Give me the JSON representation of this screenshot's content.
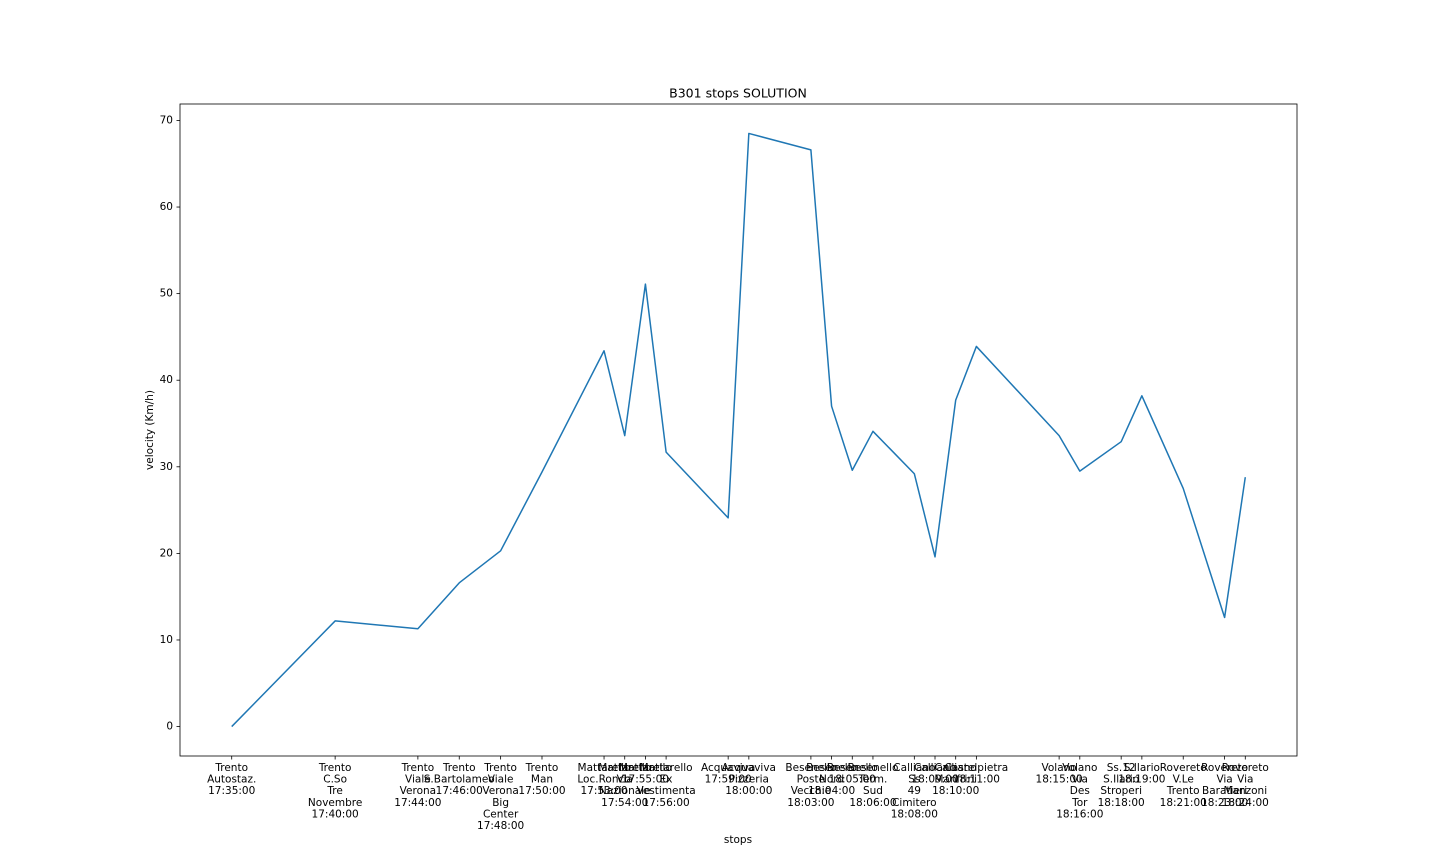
{
  "chart_data": {
    "type": "line",
    "title": "B301 stops SOLUTION",
    "x_label": "stops",
    "y_label": "velocity (Km/h)",
    "x": [
      1055,
      1060,
      1064,
      1066,
      1068,
      1070,
      1073,
      1074,
      1075,
      1076,
      1079,
      1080,
      1083,
      1084,
      1085,
      1086,
      1088,
      1089,
      1090,
      1091,
      1095,
      1096,
      1098,
      1099,
      1101,
      1103,
      1104
    ],
    "series": [
      {
        "name": "velocity",
        "color": "#1f77b4",
        "values": [
          0,
          12.2,
          11.3,
          16.6,
          20.3,
          29.4,
          43.4,
          33.6,
          51.1,
          31.7,
          24.1,
          68.5,
          66.6,
          37.0,
          29.6,
          34.1,
          29.2,
          19.6,
          37.7,
          43.9,
          33.6,
          29.5,
          32.9,
          38.2,
          27.5,
          12.6,
          28.8
        ]
      }
    ],
    "xlim": [
      1052.5,
      1106.5
    ],
    "ylim": [
      -3.4,
      71.9
    ],
    "yticks": [
      0,
      10,
      20,
      30,
      40,
      50,
      60,
      70
    ],
    "xticks": [
      {
        "value": 1055,
        "label": "Trento\nAutostaz.\n17:35:00"
      },
      {
        "value": 1060,
        "label": "Trento\nC.So\nTre\nNovembre\n17:40:00"
      },
      {
        "value": 1064,
        "label": "Trento\nViale\nVerona\n17:44:00"
      },
      {
        "value": 1066,
        "label": "Trento\nS.Bartolameo\n17:46:00"
      },
      {
        "value": 1068,
        "label": "Trento\nViale\nVerona\nBig\nCenter\n17:48:00"
      },
      {
        "value": 1070,
        "label": "Trento\nMan\n17:50:00"
      },
      {
        "value": 1073,
        "label": "Mattarello\nLoc.Ronco\n17:53:00"
      },
      {
        "value": 1074,
        "label": "Mattarello\nVia\nNazionale\n17:54:00"
      },
      {
        "value": 1075,
        "label": "Mattarello\n17:55:00"
      },
      {
        "value": 1076,
        "label": "Mattarello\nEx\nVestimenta\n17:56:00"
      },
      {
        "value": 1079,
        "label": "Acquaviva\n17:59:00"
      },
      {
        "value": 1080,
        "label": "Acquaviva\nPizzeria\n18:00:00"
      },
      {
        "value": 1083,
        "label": "Besenello\nPoste\nVecchie\n18:03:00"
      },
      {
        "value": 1084,
        "label": "Besenello\nNord\n18:04:00"
      },
      {
        "value": 1085,
        "label": "Besenello\n18:05:00"
      },
      {
        "value": 1086,
        "label": "Besenello\nTerm.\nSud\n18:06:00"
      },
      {
        "value": 1088,
        "label": "Calliano\nSs\n49\nCimitero\n18:08:00"
      },
      {
        "value": 1089,
        "label": "Calliano\n18:09:00"
      },
      {
        "value": 1090,
        "label": "Calliano\nManfrini\n18:10:00"
      },
      {
        "value": 1091,
        "label": "Castelpietra\n18:11:00"
      },
      {
        "value": 1095,
        "label": "Volano\n18:15:00"
      },
      {
        "value": 1096,
        "label": "Volano\nVia\nDes\nTor\n18:16:00"
      },
      {
        "value": 1098,
        "label": "Ss.12\nS.Ilario\nStroperi\n18:18:00"
      },
      {
        "value": 1099,
        "label": "S.Ilario\n18:19:00"
      },
      {
        "value": 1101,
        "label": "Rovereto\nV.Le\nTrento\n18:21:00"
      },
      {
        "value": 1103,
        "label": "Rovereto\nVia\nBaratieri\n18:23:00"
      },
      {
        "value": 1104,
        "label": "Rovereto\nVia\nManzoni\n18:24:00"
      }
    ],
    "grid": false
  }
}
